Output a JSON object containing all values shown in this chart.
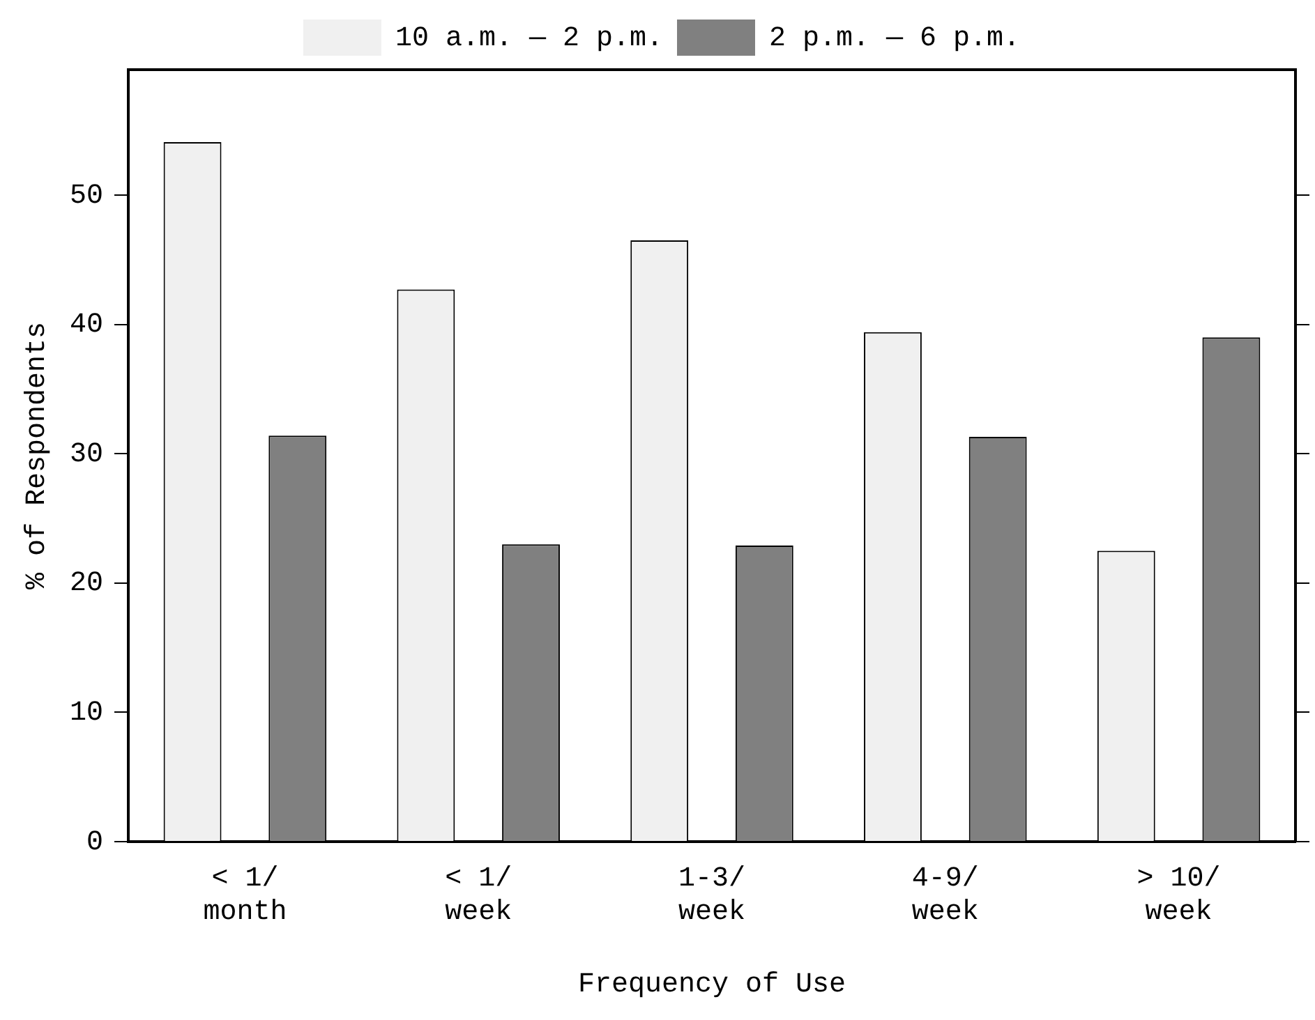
{
  "chart_data": {
    "type": "bar",
    "xlabel": "Frequency of Use",
    "ylabel": "% of Respondents",
    "categories": [
      "< 1/\nmonth",
      "< 1/\nweek",
      "1-3/\nweek",
      "4-9/\nweek",
      "> 10/\nweek"
    ],
    "series": [
      {
        "name": "10 a.m. — 2 p.m.",
        "color": "#f0f0f0",
        "values": [
          54.1,
          42.7,
          46.5,
          39.4,
          22.5
        ]
      },
      {
        "name": "2 p.m. — 6 p.m.",
        "color": "#808080",
        "values": [
          31.4,
          23.0,
          22.9,
          31.3,
          39.0
        ]
      }
    ],
    "ylim": [
      0,
      59.7
    ],
    "yticks": [
      0,
      10,
      20,
      30,
      40,
      50
    ],
    "grid": false,
    "legend": "top"
  }
}
